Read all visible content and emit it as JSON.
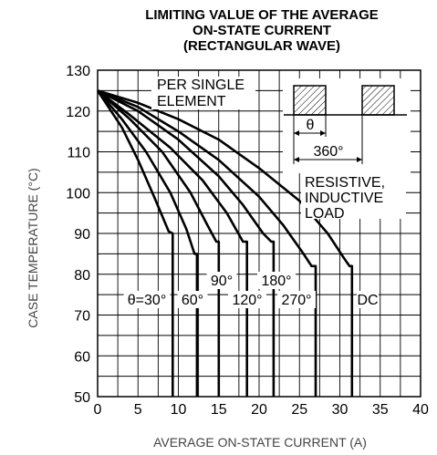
{
  "chart_data": {
    "type": "line",
    "title": [
      "LIMITING VALUE OF THE AVERAGE",
      "ON-STATE CURRENT",
      "(RECTANGULAR WAVE)"
    ],
    "xlabel": "AVERAGE ON-STATE CURRENT (A)",
    "ylabel": "CASE TEMPERATURE (°C)",
    "xlim": [
      0,
      40
    ],
    "ylim": [
      50,
      130
    ],
    "xticks": [
      "0",
      "5",
      "10",
      "15",
      "20",
      "25",
      "30",
      "35",
      "40"
    ],
    "yticks": [
      "50",
      "60",
      "70",
      "80",
      "90",
      "100",
      "110",
      "120",
      "130"
    ],
    "grid": true,
    "series": [
      {
        "name": "θ=30°",
        "points": [
          [
            0,
            125
          ],
          [
            3,
            116
          ],
          [
            5,
            108
          ],
          [
            7,
            99
          ],
          [
            8.8,
            90.5
          ],
          [
            9.3,
            90
          ],
          [
            9.3,
            50
          ]
        ]
      },
      {
        "name": "60°",
        "points": [
          [
            0,
            125
          ],
          [
            3,
            118
          ],
          [
            6,
            110
          ],
          [
            9,
            100
          ],
          [
            11,
            91
          ],
          [
            12,
            85
          ],
          [
            12.3,
            85
          ],
          [
            12.3,
            50
          ]
        ]
      },
      {
        "name": "90°",
        "points": [
          [
            0,
            125
          ],
          [
            4,
            118
          ],
          [
            8,
            110
          ],
          [
            11.5,
            100
          ],
          [
            13.6,
            92
          ],
          [
            14.7,
            88
          ],
          [
            15,
            88
          ],
          [
            15,
            50
          ]
        ]
      },
      {
        "name": "120°",
        "points": [
          [
            0,
            125
          ],
          [
            4,
            119
          ],
          [
            9,
            111
          ],
          [
            13,
            103
          ],
          [
            16,
            95
          ],
          [
            18,
            88
          ],
          [
            18.5,
            88
          ],
          [
            18.5,
            50
          ]
        ]
      },
      {
        "name": "180°",
        "points": [
          [
            0,
            125
          ],
          [
            5,
            120
          ],
          [
            10,
            113
          ],
          [
            15,
            104
          ],
          [
            18,
            97
          ],
          [
            20.5,
            90
          ],
          [
            21.5,
            88
          ],
          [
            21.8,
            88
          ],
          [
            21.8,
            50
          ]
        ]
      },
      {
        "name": "270°",
        "points": [
          [
            0,
            125
          ],
          [
            5,
            121
          ],
          [
            10,
            115
          ],
          [
            15,
            108
          ],
          [
            20,
            99
          ],
          [
            23,
            92
          ],
          [
            25.5,
            85
          ],
          [
            26.5,
            82
          ],
          [
            27,
            82
          ],
          [
            27,
            50
          ]
        ]
      },
      {
        "name": "DC",
        "points": [
          [
            0,
            125
          ],
          [
            5,
            122
          ],
          [
            10,
            118
          ],
          [
            15,
            113
          ],
          [
            20,
            106
          ],
          [
            25,
            98
          ],
          [
            28.5,
            90
          ],
          [
            30.5,
            84
          ],
          [
            31.2,
            82
          ],
          [
            31.5,
            82
          ],
          [
            31.5,
            50
          ]
        ]
      }
    ],
    "annotations": {
      "per_single_element": [
        "PER SINGLE",
        "ELEMENT"
      ],
      "load": [
        "RESISTIVE,",
        "INDUCTIVE",
        "LOAD"
      ],
      "theta": "θ",
      "period": "360°"
    }
  }
}
